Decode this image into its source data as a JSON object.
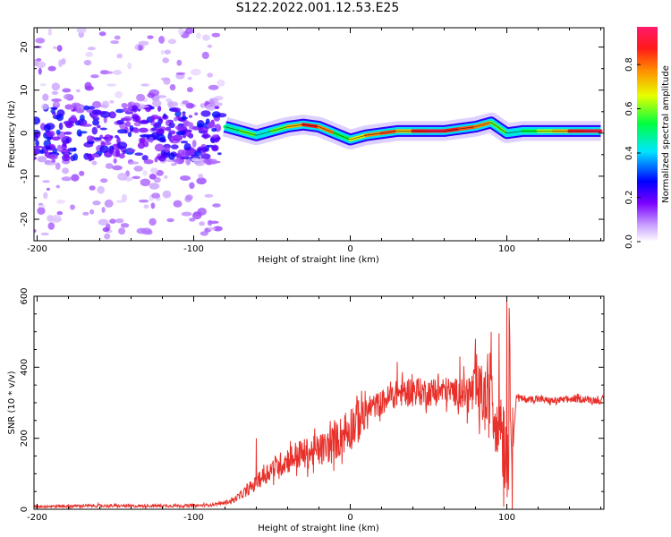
{
  "title": "S122.2022.001.12.53.E25",
  "colors": {
    "snr_line": "#e8302a",
    "ridge_low": "#00e0f0",
    "ridge_high": "#ff1a1a",
    "noise": "#7a00ff"
  },
  "chart_data": [
    {
      "type": "heatmap",
      "title": "S122.2022.001.12.53.E25",
      "xlabel": "Height of straight line (km)",
      "ylabel": "Frequency (Hz)",
      "xlim": [
        -202,
        162
      ],
      "ylim": [
        -25,
        24.5
      ],
      "xticks": [
        -200,
        -100,
        0,
        100
      ],
      "yticks": [
        20,
        10,
        0,
        -10,
        -20
      ],
      "colorbar": {
        "label": "Normalized spectral amplitude",
        "range": [
          0,
          0.97
        ],
        "ticks": [
          "0.0",
          "0.2",
          "0.4",
          "0.6",
          "0.8"
        ],
        "colormap": "rainbow (white-purple-blue-cyan-green-yellow-red-magenta)"
      },
      "grid": false,
      "signal_ridge_freq": {
        "x": [
          -80,
          -70,
          -60,
          -50,
          -40,
          -30,
          -20,
          -10,
          0,
          10,
          20,
          30,
          40,
          50,
          60,
          70,
          80,
          90,
          100,
          110,
          120,
          130,
          140,
          150,
          160
        ],
        "y": [
          1.5,
          0.5,
          -0.5,
          0.5,
          1.5,
          2,
          1.5,
          0,
          -1.5,
          -0.5,
          0,
          0.5,
          0.5,
          0.5,
          0.5,
          1,
          1.5,
          2.5,
          0,
          0.5,
          0.5,
          0.5,
          0.5,
          0.5,
          0.5
        ],
        "amplitude": [
          0.5,
          0.6,
          0.45,
          0.6,
          0.75,
          0.9,
          0.8,
          0.55,
          0.7,
          0.8,
          0.85,
          0.75,
          0.9,
          0.95,
          0.9,
          0.85,
          0.8,
          0.6,
          0.45,
          0.55,
          0.65,
          0.75,
          0.9,
          0.95,
          0.85
        ]
      },
      "noise_region_x": [
        -202,
        -82
      ]
    },
    {
      "type": "line",
      "xlabel": "Height of straight line (km)",
      "ylabel": "SNR (10 * v/v)",
      "xlim": [
        -202,
        162
      ],
      "ylim": [
        0,
        600
      ],
      "xticks": [
        -200,
        -100,
        0,
        100
      ],
      "yticks": [
        0,
        200,
        400,
        600
      ],
      "grid": false,
      "series": [
        {
          "x": [
            -202,
            -180,
            -160,
            -140,
            -120,
            -100,
            -90,
            -80,
            -75,
            -70,
            -65,
            -60,
            -55,
            -50,
            -45,
            -40,
            -35,
            -30,
            -25,
            -20,
            -15,
            -10,
            -5,
            0,
            5,
            10,
            15,
            20,
            25,
            30,
            35,
            40,
            45,
            50,
            55,
            60,
            65,
            70,
            75,
            80,
            85,
            88,
            90,
            92,
            95,
            98,
            100,
            102,
            104,
            106,
            110,
            120,
            130,
            140,
            150,
            162
          ],
          "y": [
            8,
            9,
            10,
            9,
            10,
            10,
            12,
            18,
            25,
            40,
            55,
            75,
            95,
            115,
            125,
            140,
            150,
            155,
            160,
            165,
            175,
            190,
            210,
            230,
            255,
            275,
            290,
            300,
            315,
            325,
            330,
            335,
            330,
            330,
            330,
            335,
            330,
            330,
            325,
            330,
            320,
            280,
            380,
            250,
            300,
            200,
            140,
            400,
            180,
            320,
            310,
            310,
            305,
            310,
            310,
            305
          ],
          "peaks": [
            {
              "x": -60,
              "y": 200
            },
            {
              "x": 30,
              "y": 415
            },
            {
              "x": 70,
              "y": 430
            },
            {
              "x": 80,
              "y": 480
            },
            {
              "x": 90,
              "y": 500
            },
            {
              "x": 100,
              "y": 600
            },
            {
              "x": 101,
              "y": 55
            }
          ]
        }
      ]
    }
  ]
}
